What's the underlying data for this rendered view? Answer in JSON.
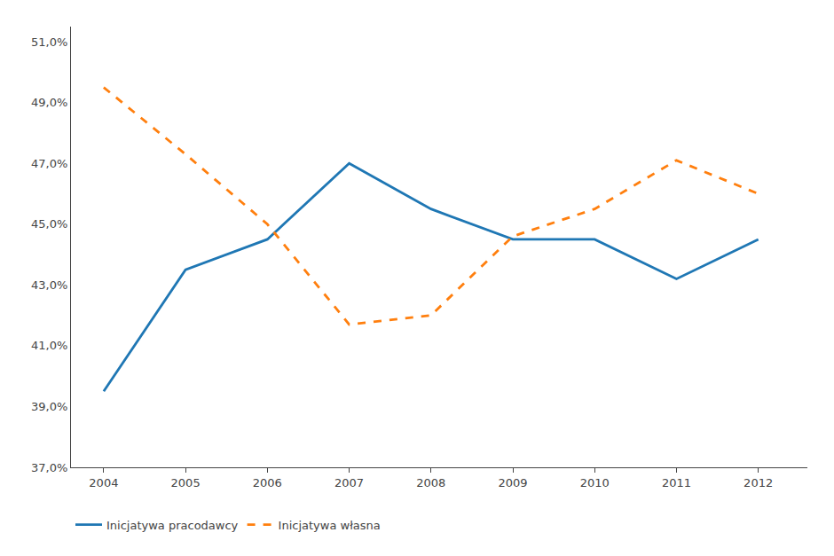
{
  "chart_data": {
    "type": "line",
    "x": [
      2004,
      2005,
      2006,
      2007,
      2008,
      2009,
      2010,
      2011,
      2012
    ],
    "series": [
      {
        "name": "Inicjatywa pracodawcy",
        "line_style": "solid",
        "values": [
          0.395,
          0.435,
          0.445,
          0.47,
          0.455,
          0.445,
          0.445,
          0.432,
          0.445
        ]
      },
      {
        "name": "Inicjatywa własna",
        "line_style": "dashed",
        "values": [
          0.495,
          0.473,
          0.45,
          0.417,
          0.42,
          0.446,
          0.455,
          0.471,
          0.46
        ]
      }
    ],
    "xlim": [
      2003.6,
      2012.6
    ],
    "xticks": [
      2004,
      2005,
      2006,
      2007,
      2008,
      2009,
      2010,
      2011,
      2012
    ],
    "ylim": [
      0.37,
      0.515
    ],
    "yticks": [
      {
        "value": 0.37,
        "label": "37,0%"
      },
      {
        "value": 0.39,
        "label": "39,0%"
      },
      {
        "value": 0.41,
        "label": "41,0%"
      },
      {
        "value": 0.43,
        "label": "43,0%"
      },
      {
        "value": 0.45,
        "label": "45,0%"
      },
      {
        "value": 0.47,
        "label": "47,0%"
      },
      {
        "value": 0.49,
        "label": "49,0%"
      },
      {
        "value": 0.51,
        "label": "51,0%"
      }
    ],
    "grid": false,
    "legend": "lower left"
  }
}
